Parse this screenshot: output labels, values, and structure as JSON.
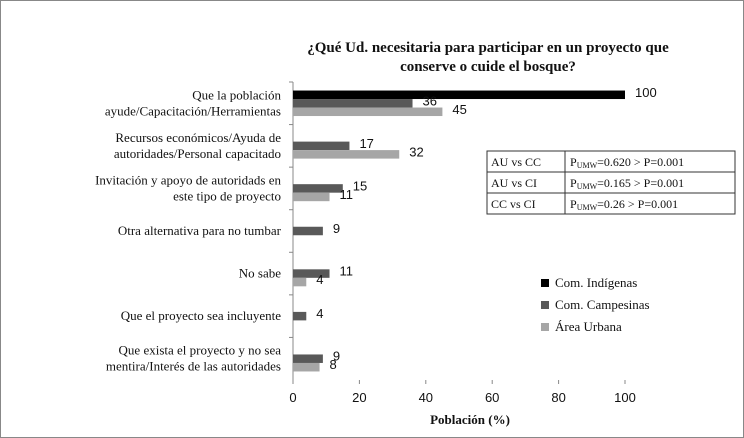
{
  "chart_data": {
    "type": "bar",
    "orientation": "horizontal",
    "title": [
      "¿Qué Ud. necesitaria para participar  en un proyecto que",
      "conserve o cuide el bosque?"
    ],
    "xlabel": "Población (%)",
    "categories": [
      [
        "Que la población",
        "ayude/Capacitación/Herramientas"
      ],
      [
        "Recursos económicos/Ayuda de",
        "autoridades/Personal capacitado"
      ],
      [
        "Invitación y apoyo de autoridads en",
        "este tipo de proyecto"
      ],
      [
        "Otra alternativa para no tumbar"
      ],
      [
        "No sabe"
      ],
      [
        "Que el proyecto sea incluyente"
      ],
      [
        "Que exista el proyecto y no sea",
        "mentira/Interés de las autoridades"
      ]
    ],
    "series": [
      {
        "name": "Com. Indígenas",
        "color": "#000000",
        "values": [
          100,
          null,
          null,
          null,
          null,
          null,
          null
        ]
      },
      {
        "name": "Com. Campesinas",
        "color": "#595959",
        "values": [
          36,
          17,
          15,
          9,
          11,
          4,
          9
        ]
      },
      {
        "name": "Área Urbana",
        "color": "#a6a6a6",
        "values": [
          45,
          32,
          11,
          null,
          4,
          null,
          8
        ]
      }
    ],
    "xlim": [
      0,
      100
    ],
    "xticks": [
      0,
      20,
      40,
      60,
      80,
      100
    ],
    "comparisons": [
      {
        "pair": "AU vs CC",
        "p": "P",
        "sub": "UMW",
        "rest": "=0.620 > P=0.001"
      },
      {
        "pair": "AU vs CI",
        "p": "P",
        "sub": "UMW",
        "rest": "=0.165 > P=0.001"
      },
      {
        "pair": "CC vs CI",
        "p": "P",
        "sub": "UMW",
        "rest": "=0.26 > P=0.001"
      }
    ]
  }
}
